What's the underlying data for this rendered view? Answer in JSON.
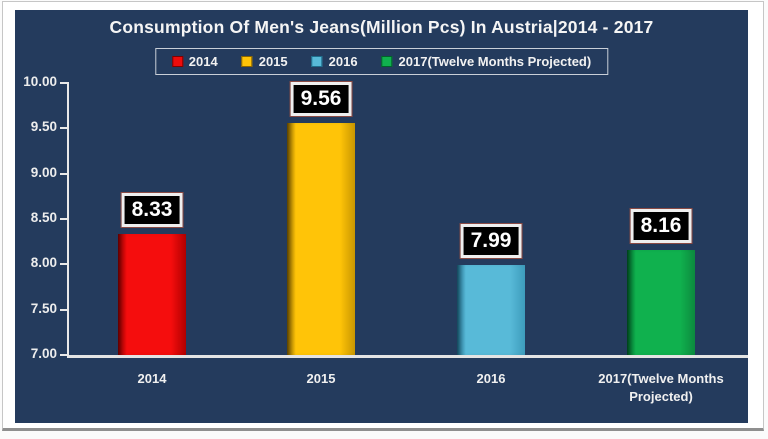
{
  "chart_data": {
    "type": "bar",
    "title": "Consumption Of Men's Jeans(Million Pcs) In Austria|2014 - 2017",
    "categories": [
      "2014",
      "2015",
      "2016",
      "2017(Twelve Months Projected)"
    ],
    "values": [
      8.33,
      9.56,
      7.99,
      8.16
    ],
    "value_labels": [
      "8.33",
      "9.56",
      "7.99",
      "8.16"
    ],
    "xlabel": "",
    "ylabel": "",
    "ylim": [
      7.0,
      10.0
    ],
    "ytick_step": 0.5,
    "yticks": [
      "7.00",
      "7.50",
      "8.00",
      "8.50",
      "9.00",
      "9.50",
      "10.00"
    ],
    "grid": false,
    "legend_position": "top-center",
    "legend": [
      {
        "label": "2014",
        "color": "#ee0c0c",
        "edge": "#7f0000"
      },
      {
        "label": "2015",
        "color": "#ffc408",
        "edge": "#8a6500"
      },
      {
        "label": "2016",
        "color": "#58bad8",
        "edge": "#1f6e8c"
      },
      {
        "label": "2017(Twelve Months Projected)",
        "color": "#10b14e",
        "edge": "#00632a"
      }
    ],
    "series_colors": [
      {
        "name": "2014",
        "fill": "#f50d0d",
        "edge": "#8f0000",
        "dark": "#b00000"
      },
      {
        "name": "2015",
        "fill": "#ffc408",
        "edge": "#8a6500",
        "dark": "#c89600"
      },
      {
        "name": "2016",
        "fill": "#58bad8",
        "edge": "#1f6e8c",
        "dark": "#3d9cbc"
      },
      {
        "name": "2017(Twelve Months Projected)",
        "fill": "#10b14e",
        "edge": "#00632a",
        "dark": "#0c8a3e"
      }
    ]
  },
  "colors": {
    "background": "#243B5D",
    "axis": "#e9e9e9",
    "text": "#f2f2f2",
    "label_box_bg": "#000000",
    "label_box_border": "#efefef",
    "label_box_outline": "#8a4a44",
    "legend_border": "#c9cfd8",
    "frame_bg": "#ffffff",
    "frame_shadow": "#8f8f8f"
  }
}
